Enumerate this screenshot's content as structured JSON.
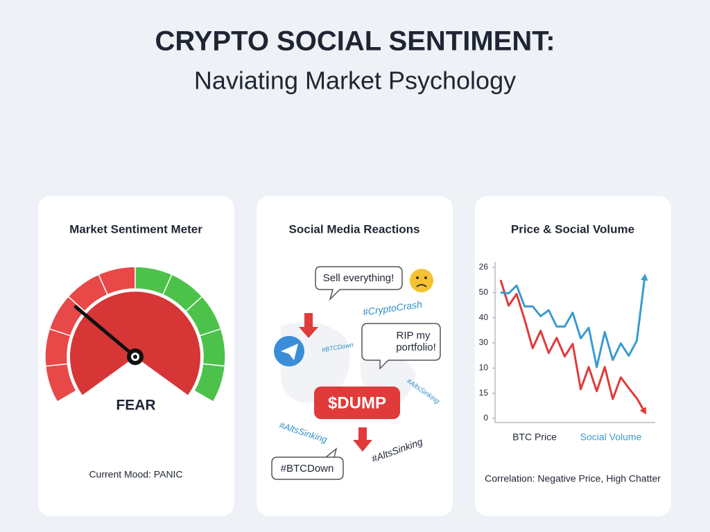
{
  "header": {
    "title": "CRYPTO SOCIAL SENTIMENT:",
    "subtitle": "Naviating Market Psychology"
  },
  "cards": [
    {
      "title": "Market Sentiment Meter",
      "gauge_label": "FEAR",
      "footer": "Current Mood: PANIC"
    },
    {
      "title": "Social Media Reactions",
      "posts": [
        "Sell everything!",
        "#BTCDown"
      ],
      "post_lines": [
        "RIP my",
        "portfolio!"
      ],
      "hashtags": [
        "#CryptoCrash",
        "#BTCDown",
        "#AltsSinking",
        "#AltsSinking",
        "#AltsSinking"
      ],
      "badge": "$DUMP"
    },
    {
      "title": "Price & Social Volume",
      "footer": "Correlation: Negative Price, High Chatter"
    }
  ],
  "chart_data": {
    "type": "line",
    "categories": [
      null,
      null,
      null,
      null,
      null,
      null,
      null,
      null,
      null,
      null,
      null,
      null,
      null,
      null,
      null,
      null,
      null,
      null,
      null
    ],
    "series": [
      {
        "name": "BTC Price",
        "color": "#e03a3a",
        "values": [
          55,
          44.8,
          49.4,
          39.2,
          27.9,
          34.8,
          26,
          32,
          24.6,
          29.6,
          11.6,
          20.4,
          10.8,
          20.4,
          7.7,
          16.3,
          12,
          8,
          2.5
        ]
      },
      {
        "name": "Social Volume",
        "color": "#3a9bd0",
        "values": [
          50,
          49.7,
          52.8,
          44.5,
          44.5,
          40.6,
          43,
          36.5,
          36.5,
          42,
          31.8,
          36,
          20.4,
          34.3,
          23.2,
          29.8,
          24.9,
          30.9,
          56.4
        ]
      }
    ],
    "ylim": [
      0,
      60
    ],
    "yticks": [
      {
        "value": 60,
        "label": "26"
      },
      50,
      40,
      30,
      {
        "value": 20,
        "label": "10"
      },
      {
        "value": 10,
        "label": "15"
      },
      0
    ]
  }
}
